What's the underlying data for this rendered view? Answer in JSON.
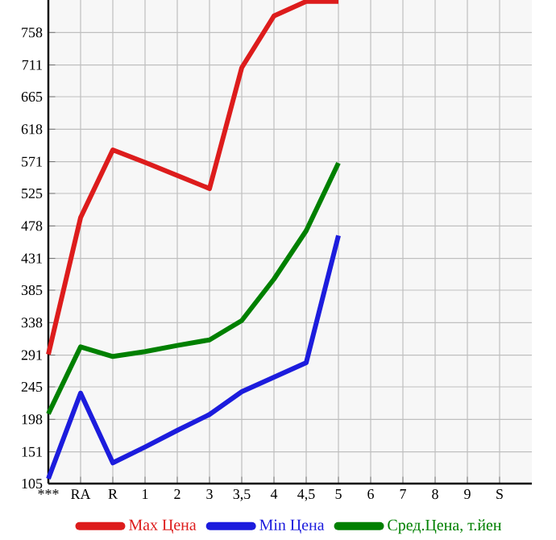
{
  "chart_data": {
    "type": "line",
    "categories": [
      "***",
      "RA",
      "R",
      "1",
      "2",
      "3",
      "3,5",
      "4",
      "4,5",
      "5",
      "6",
      "7",
      "8",
      "9",
      "S"
    ],
    "series": [
      {
        "name": "Max Цена",
        "color": "#dd1c1c",
        "values": [
          292,
          490,
          588,
          570,
          551,
          532,
          707,
          782,
          803,
          803,
          null,
          null,
          null,
          null,
          null
        ]
      },
      {
        "name": "Min Цена",
        "color": "#1c1cdd",
        "values": [
          112,
          236,
          135,
          158,
          182,
          205,
          238,
          259,
          280,
          464,
          null,
          null,
          null,
          null,
          null
        ]
      },
      {
        "name": "Сред.Цена, т.йен",
        "color": "#008000",
        "values": [
          206,
          303,
          289,
          296,
          305,
          313,
          341,
          401,
          471,
          569,
          null,
          null,
          null,
          null,
          null
        ]
      }
    ],
    "ylim": [
      105,
      805
    ],
    "yticks": [
      105,
      151,
      198,
      245,
      291,
      338,
      385,
      431,
      478,
      525,
      571,
      618,
      665,
      711,
      758
    ],
    "grid": true,
    "legend": "bottom",
    "marker": "none",
    "line_style": "solid"
  }
}
